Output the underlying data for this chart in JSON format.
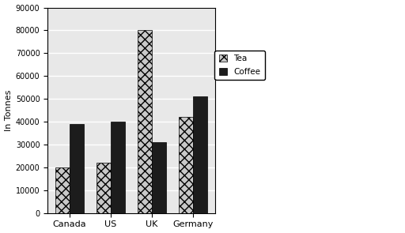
{
  "categories": [
    "Canada",
    "US",
    "UK",
    "Germany"
  ],
  "tea_values": [
    20000,
    22000,
    80000,
    42000
  ],
  "coffee_values": [
    39000,
    40000,
    31000,
    51000
  ],
  "tea_color": "#c8c8c8",
  "tea_hatch": "xxx",
  "coffee_color": "#1c1c1c",
  "coffee_hatch": "",
  "ylabel": "In Tonnes",
  "ylim": [
    0,
    90000
  ],
  "yticks": [
    0,
    10000,
    20000,
    30000,
    40000,
    50000,
    60000,
    70000,
    80000,
    90000
  ],
  "legend_labels": [
    "Tea",
    "Coffee"
  ],
  "bar_width": 0.35,
  "background_color": "#ffffff",
  "plot_bg_color": "#e8e8e8",
  "grid_color": "#ffffff",
  "title": ""
}
